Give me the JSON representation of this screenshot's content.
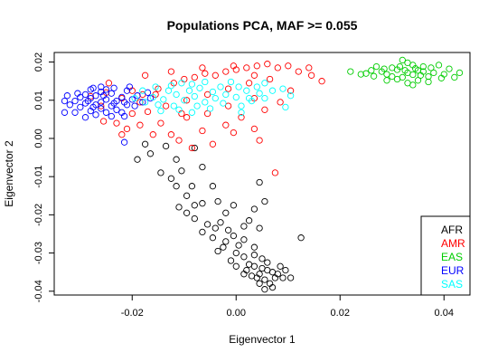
{
  "chart_data": {
    "type": "scatter",
    "title": "Populations PCA, MAF >= 0.055",
    "xlabel": "Eigenvector 1",
    "ylabel": "Eigenvector 2",
    "xlim": [
      -0.035,
      0.045
    ],
    "ylim": [
      -0.041,
      0.0225
    ],
    "x_ticks": [
      -0.02,
      0.0,
      0.02,
      0.04
    ],
    "x_tick_labels": [
      "-0.02",
      "0.00",
      "0.02",
      "0.04"
    ],
    "y_ticks": [
      -0.04,
      -0.03,
      -0.02,
      -0.01,
      0.0,
      0.01,
      0.02
    ],
    "y_tick_labels": [
      "-0.04",
      "-0.03",
      "-0.02",
      "-0.01",
      "0.00",
      "0.01",
      "0.02"
    ],
    "grid": false,
    "marker": "open-circle",
    "legend": {
      "position": "bottom-right",
      "entries": [
        {
          "label": "AFR",
          "color": "#000000"
        },
        {
          "label": "AMR",
          "color": "#ff0000"
        },
        {
          "label": "EAS",
          "color": "#00cd00"
        },
        {
          "label": "EUR",
          "color": "#0000ff"
        },
        {
          "label": "SAS",
          "color": "#00ffff"
        }
      ]
    },
    "series": [
      {
        "name": "AFR",
        "color": "#000000",
        "points": [
          [
            0.005,
            -0.034
          ],
          [
            0.006,
            -0.0345
          ],
          [
            0.0045,
            -0.0355
          ],
          [
            0.007,
            -0.035
          ],
          [
            0.0035,
            -0.0335
          ],
          [
            0.0075,
            -0.0365
          ],
          [
            0.0055,
            -0.037
          ],
          [
            0.0025,
            -0.033
          ],
          [
            0.008,
            -0.0355
          ],
          [
            0.006,
            -0.0325
          ],
          [
            0.004,
            -0.0365
          ],
          [
            0.0065,
            -0.038
          ],
          [
            0.009,
            -0.0365
          ],
          [
            0.002,
            -0.0345
          ],
          [
            0.0085,
            -0.0335
          ],
          [
            0.005,
            -0.0315
          ],
          [
            0.0045,
            -0.038
          ],
          [
            0.0105,
            -0.0365
          ],
          [
            0.0015,
            -0.0355
          ],
          [
            0.007,
            -0.039
          ],
          [
            0.0095,
            -0.0345
          ],
          [
            0.003,
            -0.036
          ],
          [
            0.0055,
            -0.0395
          ],
          [
            0.0,
            -0.0335
          ],
          [
            0.0035,
            -0.0305
          ],
          [
            0.0015,
            -0.031
          ],
          [
            0.0,
            -0.03
          ],
          [
            -0.0025,
            -0.0285
          ],
          [
            -0.001,
            -0.032
          ],
          [
            0.0005,
            -0.028
          ],
          [
            -0.0035,
            -0.0295
          ],
          [
            -0.002,
            -0.027
          ],
          [
            -0.0005,
            -0.0255
          ],
          [
            -0.0045,
            -0.026
          ],
          [
            -0.0015,
            -0.024
          ],
          [
            -0.004,
            -0.0235
          ],
          [
            -0.0055,
            -0.0225
          ],
          [
            -0.003,
            -0.022
          ],
          [
            -0.0065,
            -0.0245
          ],
          [
            0.0015,
            -0.0265
          ],
          [
            0.0035,
            -0.0285
          ],
          [
            0.0045,
            -0.0235
          ],
          [
            0.0025,
            -0.0215
          ],
          [
            0.0035,
            -0.0185
          ],
          [
            0.0055,
            -0.0165
          ],
          [
            0.0045,
            -0.0115
          ],
          [
            0.0125,
            -0.026
          ],
          [
            -0.008,
            -0.021
          ],
          [
            -0.0095,
            -0.0195
          ],
          [
            -0.008,
            -0.0175
          ],
          [
            -0.011,
            -0.018
          ],
          [
            -0.0095,
            -0.015
          ],
          [
            -0.0115,
            -0.0125
          ],
          [
            -0.0125,
            -0.0105
          ],
          [
            -0.0085,
            -0.0125
          ],
          [
            -0.0145,
            -0.009
          ],
          [
            -0.0105,
            -0.0085
          ],
          [
            -0.0065,
            -0.0075
          ],
          [
            -0.0045,
            -0.0125
          ],
          [
            -0.002,
            -0.0195
          ],
          [
            -0.0035,
            -0.0165
          ],
          [
            -0.0005,
            -0.0175
          ],
          [
            -0.0065,
            -0.017
          ],
          [
            -0.019,
            -0.0055
          ],
          [
            -0.0165,
            -0.004
          ],
          [
            -0.0175,
            -0.0015
          ],
          [
            -0.0135,
            -0.002
          ],
          [
            -0.008,
            -0.0025
          ],
          [
            -0.0115,
            -0.0055
          ],
          [
            0.0015,
            -0.023
          ]
        ]
      },
      {
        "name": "AMR",
        "color": "#ff0000",
        "points": [
          [
            -0.028,
            0.011
          ],
          [
            -0.026,
            0.0085
          ],
          [
            -0.025,
            0.012
          ],
          [
            -0.022,
            0.0105
          ],
          [
            -0.02,
            0.0125
          ],
          [
            -0.018,
            0.0115
          ],
          [
            -0.015,
            0.013
          ],
          [
            -0.012,
            0.0145
          ],
          [
            -0.01,
            0.0155
          ],
          [
            -0.008,
            0.016
          ],
          [
            -0.006,
            0.017
          ],
          [
            -0.004,
            0.0165
          ],
          [
            -0.002,
            0.0175
          ],
          [
            0.0,
            0.018
          ],
          [
            0.002,
            0.0185
          ],
          [
            0.004,
            0.019
          ],
          [
            0.006,
            0.0195
          ],
          [
            0.008,
            0.0185
          ],
          [
            0.01,
            0.019
          ],
          [
            0.012,
            0.0175
          ],
          [
            0.0065,
            0.0155
          ],
          [
            0.0025,
            0.0145
          ],
          [
            -0.0015,
            0.013
          ],
          [
            -0.0055,
            0.0115
          ],
          [
            -0.0095,
            0.01
          ],
          [
            -0.0135,
            0.0085
          ],
          [
            -0.017,
            0.007
          ],
          [
            -0.0185,
            0.0035
          ],
          [
            -0.016,
            0.001
          ],
          [
            -0.0145,
            0.004
          ],
          [
            -0.0125,
            0.001
          ],
          [
            -0.011,
            -0.0005
          ],
          [
            -0.0085,
            -0.0025
          ],
          [
            -0.0065,
            0.002
          ],
          [
            -0.0045,
            -0.0015
          ],
          [
            -0.002,
            0.0035
          ],
          [
            0.001,
            0.0055
          ],
          [
            0.0035,
            0.0025
          ],
          [
            0.0045,
            -0.0005
          ],
          [
            0.0075,
            -0.009
          ],
          [
            -0.022,
            0.001
          ],
          [
            -0.02,
            0.0065
          ],
          [
            -0.023,
            0.004
          ],
          [
            -0.0185,
            0.0095
          ],
          [
            0.0145,
            0.0165
          ],
          [
            0.0165,
            0.015
          ],
          [
            0.014,
            0.0185
          ],
          [
            -0.0095,
            0.0055
          ],
          [
            -0.0055,
            0.0065
          ],
          [
            -0.0015,
            0.0085
          ],
          [
            0.0035,
            0.0105
          ],
          [
            0.0055,
            0.0075
          ],
          [
            0.0085,
            0.0095
          ],
          [
            0.0105,
            0.0125
          ],
          [
            -0.0245,
            0.0145
          ],
          [
            -0.0175,
            0.0165
          ],
          [
            -0.0125,
            0.0175
          ],
          [
            -0.0065,
            0.0185
          ],
          [
            -0.0005,
            0.019
          ],
          [
            0.0035,
            0.0165
          ],
          [
            -0.0255,
            0.0045
          ],
          [
            -0.021,
            0.0025
          ],
          [
            -0.0105,
            0.0065
          ],
          [
            -0.0005,
            0.0015
          ],
          [
            -0.0155,
            0.0115
          ]
        ]
      },
      {
        "name": "EAS",
        "color": "#00cd00",
        "points": [
          [
            0.033,
            0.0172
          ],
          [
            0.031,
            0.018
          ],
          [
            0.035,
            0.0178
          ],
          [
            0.029,
            0.0168
          ],
          [
            0.037,
            0.0162
          ],
          [
            0.032,
            0.016
          ],
          [
            0.034,
            0.0192
          ],
          [
            0.03,
            0.0185
          ],
          [
            0.036,
            0.0188
          ],
          [
            0.028,
            0.0175
          ],
          [
            0.038,
            0.0172
          ],
          [
            0.033,
            0.0198
          ],
          [
            0.031,
            0.0155
          ],
          [
            0.035,
            0.0152
          ],
          [
            0.026,
            0.0178
          ],
          [
            0.04,
            0.0168
          ],
          [
            0.029,
            0.0152
          ],
          [
            0.037,
            0.0148
          ],
          [
            0.033,
            0.0145
          ],
          [
            0.025,
            0.017
          ],
          [
            0.041,
            0.0182
          ],
          [
            0.027,
            0.0188
          ],
          [
            0.039,
            0.0192
          ],
          [
            0.032,
            0.0205
          ],
          [
            0.034,
            0.0167
          ],
          [
            0.03,
            0.0162
          ],
          [
            0.036,
            0.0175
          ],
          [
            0.022,
            0.0175
          ],
          [
            0.043,
            0.0172
          ],
          [
            0.024,
            0.0168
          ],
          [
            0.042,
            0.016
          ],
          [
            0.034,
            0.014
          ],
          [
            0.0315,
            0.0188
          ],
          [
            0.0345,
            0.0183
          ],
          [
            0.0285,
            0.0182
          ],
          [
            0.0375,
            0.0185
          ],
          [
            0.0265,
            0.0163
          ],
          [
            0.0395,
            0.0158
          ],
          [
            0.0325,
            0.0178
          ],
          [
            0.0355,
            0.0165
          ]
        ]
      },
      {
        "name": "EUR",
        "color": "#0000ff",
        "points": [
          [
            -0.026,
            0.0095
          ],
          [
            -0.027,
            0.0088
          ],
          [
            -0.025,
            0.0102
          ],
          [
            -0.028,
            0.0105
          ],
          [
            -0.024,
            0.0085
          ],
          [
            -0.029,
            0.0092
          ],
          [
            -0.023,
            0.0098
          ],
          [
            -0.026,
            0.0078
          ],
          [
            -0.027,
            0.0112
          ],
          [
            -0.025,
            0.0068
          ],
          [
            -0.03,
            0.0082
          ],
          [
            -0.022,
            0.0108
          ],
          [
            -0.028,
            0.0072
          ],
          [
            -0.024,
            0.0118
          ],
          [
            -0.031,
            0.0098
          ],
          [
            -0.021,
            0.0088
          ],
          [
            -0.026,
            0.0122
          ],
          [
            -0.029,
            0.0115
          ],
          [
            -0.023,
            0.0075
          ],
          [
            -0.032,
            0.0088
          ],
          [
            -0.02,
            0.0102
          ],
          [
            -0.027,
            0.0062
          ],
          [
            -0.025,
            0.0128
          ],
          [
            -0.03,
            0.0108
          ],
          [
            -0.022,
            0.0068
          ],
          [
            -0.033,
            0.0098
          ],
          [
            -0.019,
            0.0112
          ],
          [
            -0.028,
            0.0128
          ],
          [
            -0.024,
            0.0058
          ],
          [
            -0.031,
            0.0068
          ],
          [
            -0.018,
            0.0095
          ],
          [
            -0.026,
            0.0135
          ],
          [
            -0.033,
            0.0068
          ],
          [
            -0.017,
            0.012
          ],
          [
            -0.021,
            0.0125
          ],
          [
            -0.0285,
            0.0098
          ],
          [
            -0.0235,
            0.0092
          ],
          [
            -0.0275,
            0.0082
          ],
          [
            -0.0255,
            0.0112
          ],
          [
            -0.0215,
            0.0095
          ],
          [
            -0.0305,
            0.0118
          ],
          [
            -0.0195,
            0.0085
          ],
          [
            -0.0235,
            0.0132
          ],
          [
            -0.029,
            0.0055
          ],
          [
            -0.0275,
            0.0132
          ],
          [
            -0.0215,
            0.0058
          ],
          [
            -0.0205,
            0.0135
          ],
          [
            -0.0165,
            0.0105
          ],
          [
            -0.0325,
            0.0112
          ],
          [
            -0.0215,
            -0.001
          ]
        ]
      },
      {
        "name": "SAS",
        "color": "#00ffff",
        "points": [
          [
            -0.01,
            0.01
          ],
          [
            -0.008,
            0.011
          ],
          [
            -0.006,
            0.0095
          ],
          [
            -0.012,
            0.0085
          ],
          [
            -0.004,
            0.0105
          ],
          [
            -0.014,
            0.0102
          ],
          [
            -0.009,
            0.0125
          ],
          [
            -0.002,
            0.0115
          ],
          [
            -0.011,
            0.0075
          ],
          [
            0.0,
            0.0108
          ],
          [
            -0.007,
            0.0132
          ],
          [
            -0.015,
            0.0088
          ],
          [
            0.002,
            0.0125
          ],
          [
            -0.005,
            0.0078
          ],
          [
            -0.013,
            0.0125
          ],
          [
            -0.016,
            0.0108
          ],
          [
            -0.003,
            0.0135
          ],
          [
            -0.0085,
            0.0068
          ],
          [
            0.003,
            0.0098
          ],
          [
            -0.0175,
            0.0095
          ],
          [
            -0.0125,
            0.0138
          ],
          [
            0.0045,
            0.0118
          ],
          [
            -0.0195,
            0.0105
          ],
          [
            0.001,
            0.0085
          ],
          [
            -0.006,
            0.0148
          ],
          [
            0.0055,
            0.0105
          ],
          [
            -0.0105,
            0.0145
          ],
          [
            -0.0145,
            0.0072
          ],
          [
            0.004,
            0.0135
          ],
          [
            -0.001,
            0.0148
          ],
          [
            0.007,
            0.0125
          ],
          [
            -0.018,
            0.0125
          ],
          [
            0.001,
            0.0068
          ],
          [
            -0.0075,
            0.0085
          ],
          [
            -0.0025,
            0.0092
          ],
          [
            0.009,
            0.013
          ],
          [
            0.0105,
            0.0112
          ],
          [
            0.0095,
            0.0082
          ],
          [
            0.0055,
            0.0145
          ],
          [
            -0.0115,
            0.0115
          ],
          [
            -0.0045,
            0.0122
          ],
          [
            0.0025,
            0.0105
          ],
          [
            -0.0155,
            0.0135
          ],
          [
            -0.0085,
            0.0142
          ],
          [
            0.0005,
            0.0135
          ]
        ]
      }
    ]
  }
}
